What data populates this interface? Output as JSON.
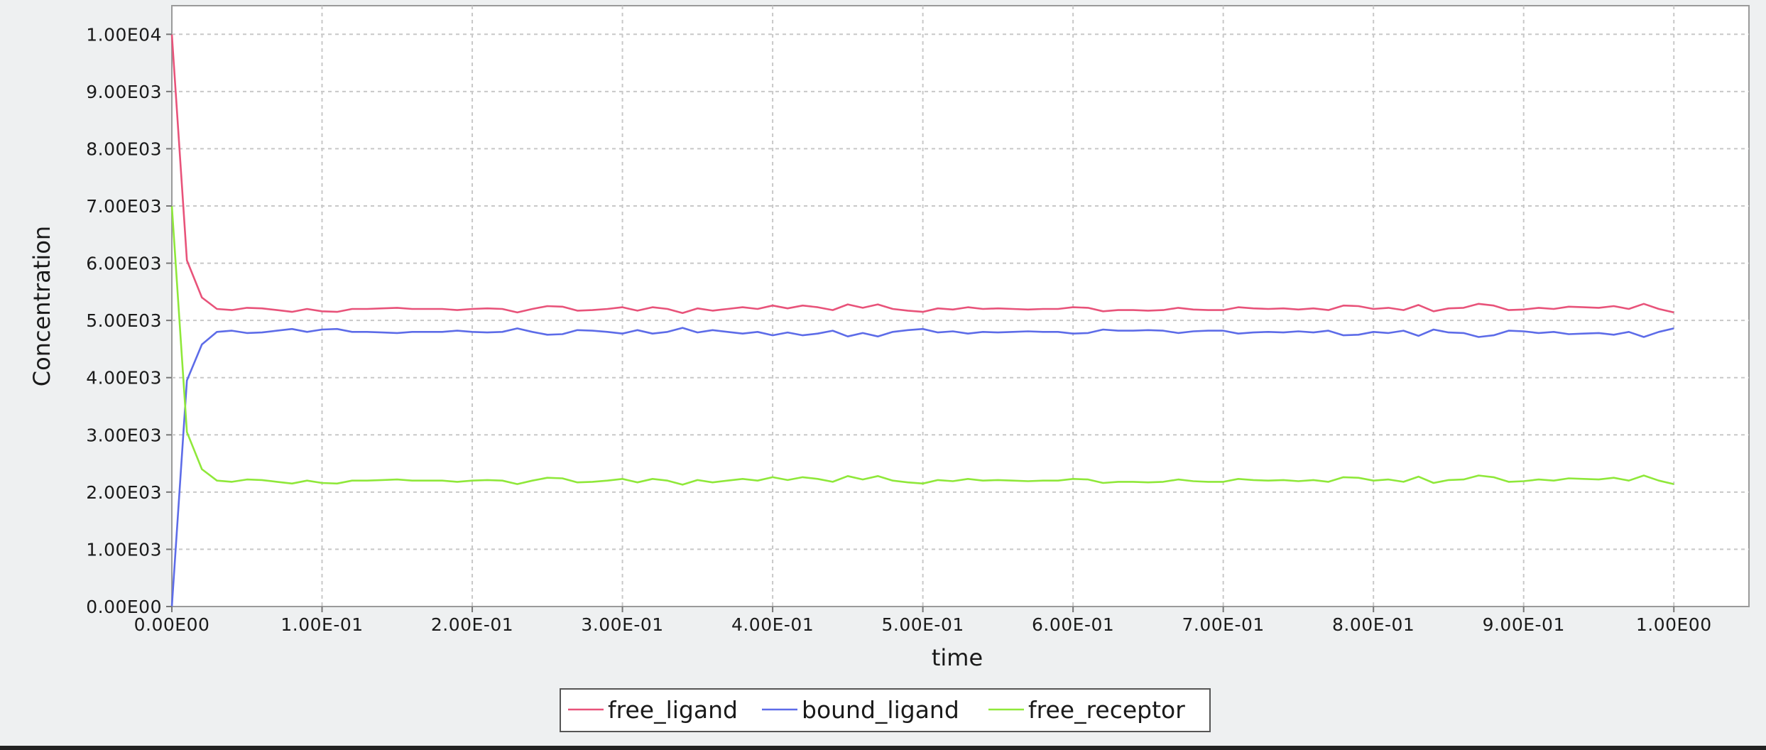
{
  "chart_data": {
    "type": "line",
    "title": "",
    "xlabel": "time",
    "ylabel": "Concentration",
    "xlim": [
      0,
      1.05
    ],
    "ylim": [
      0,
      10500
    ],
    "grid": true,
    "legend_position": "bottom-center",
    "x_ticks": [
      {
        "value": 0.0,
        "label": "0.00E00"
      },
      {
        "value": 0.1,
        "label": "1.00E-01"
      },
      {
        "value": 0.2,
        "label": "2.00E-01"
      },
      {
        "value": 0.3,
        "label": "3.00E-01"
      },
      {
        "value": 0.4,
        "label": "4.00E-01"
      },
      {
        "value": 0.5,
        "label": "5.00E-01"
      },
      {
        "value": 0.6,
        "label": "6.00E-01"
      },
      {
        "value": 0.7,
        "label": "7.00E-01"
      },
      {
        "value": 0.8,
        "label": "8.00E-01"
      },
      {
        "value": 0.9,
        "label": "9.00E-01"
      },
      {
        "value": 1.0,
        "label": "1.00E00"
      }
    ],
    "y_ticks": [
      {
        "value": 0,
        "label": "0.00E00"
      },
      {
        "value": 1000,
        "label": "1.00E03"
      },
      {
        "value": 2000,
        "label": "2.00E03"
      },
      {
        "value": 3000,
        "label": "3.00E03"
      },
      {
        "value": 4000,
        "label": "4.00E03"
      },
      {
        "value": 5000,
        "label": "5.00E03"
      },
      {
        "value": 6000,
        "label": "6.00E03"
      },
      {
        "value": 7000,
        "label": "7.00E03"
      },
      {
        "value": 8000,
        "label": "8.00E03"
      },
      {
        "value": 9000,
        "label": "9.00E03"
      },
      {
        "value": 10000,
        "label": "1.00E04"
      }
    ],
    "x": [
      0,
      0.01,
      0.02,
      0.03,
      0.04,
      0.05,
      0.06,
      0.07,
      0.08,
      0.09,
      0.1,
      0.11,
      0.12,
      0.13,
      0.14,
      0.15,
      0.16,
      0.17,
      0.18,
      0.19,
      0.2,
      0.21,
      0.22,
      0.23,
      0.24,
      0.25,
      0.26,
      0.27,
      0.28,
      0.29,
      0.3,
      0.31,
      0.32,
      0.33,
      0.34,
      0.35,
      0.36,
      0.37,
      0.38,
      0.39,
      0.4,
      0.41,
      0.42,
      0.43,
      0.44,
      0.45,
      0.46,
      0.47,
      0.48,
      0.49,
      0.5,
      0.51,
      0.52,
      0.53,
      0.54,
      0.55,
      0.56,
      0.57,
      0.58,
      0.59,
      0.6,
      0.61,
      0.62,
      0.63,
      0.64,
      0.65,
      0.66,
      0.67,
      0.68,
      0.69,
      0.7,
      0.71,
      0.72,
      0.73,
      0.74,
      0.75,
      0.76,
      0.77,
      0.78,
      0.79,
      0.8,
      0.81,
      0.82,
      0.83,
      0.84,
      0.85,
      0.86,
      0.87,
      0.88,
      0.89,
      0.9,
      0.91,
      0.92,
      0.93,
      0.94,
      0.95,
      0.96,
      0.97,
      0.98,
      0.99,
      1.0
    ],
    "series": [
      {
        "name": "free_ligand",
        "color": "#e8537a",
        "values": [
          10000,
          6050,
          5400,
          5200,
          5180,
          5220,
          5210,
          5180,
          5150,
          5200,
          5160,
          5150,
          5200,
          5200,
          5210,
          5220,
          5200,
          5200,
          5200,
          5180,
          5200,
          5210,
          5200,
          5140,
          5200,
          5250,
          5240,
          5170,
          5180,
          5200,
          5230,
          5170,
          5230,
          5200,
          5130,
          5210,
          5170,
          5200,
          5230,
          5200,
          5260,
          5210,
          5260,
          5230,
          5180,
          5280,
          5220,
          5280,
          5200,
          5170,
          5150,
          5210,
          5190,
          5230,
          5200,
          5210,
          5200,
          5190,
          5200,
          5200,
          5230,
          5220,
          5160,
          5180,
          5180,
          5170,
          5180,
          5220,
          5190,
          5180,
          5180,
          5230,
          5210,
          5200,
          5210,
          5190,
          5210,
          5180,
          5260,
          5250,
          5200,
          5220,
          5180,
          5270,
          5160,
          5210,
          5220,
          5290,
          5260,
          5180,
          5190,
          5220,
          5200,
          5240,
          5230,
          5220,
          5250,
          5200,
          5290,
          5200,
          5140
        ]
      },
      {
        "name": "bound_ligand",
        "color": "#5d6ce8",
        "values": [
          0,
          3950,
          4580,
          4800,
          4820,
          4780,
          4790,
          4820,
          4850,
          4800,
          4840,
          4850,
          4800,
          4800,
          4790,
          4780,
          4800,
          4800,
          4800,
          4820,
          4800,
          4790,
          4800,
          4860,
          4800,
          4750,
          4760,
          4830,
          4820,
          4800,
          4770,
          4830,
          4770,
          4800,
          4870,
          4790,
          4830,
          4800,
          4770,
          4800,
          4740,
          4790,
          4740,
          4770,
          4820,
          4720,
          4780,
          4720,
          4800,
          4830,
          4850,
          4790,
          4810,
          4770,
          4800,
          4790,
          4800,
          4810,
          4800,
          4800,
          4770,
          4780,
          4840,
          4820,
          4820,
          4830,
          4820,
          4780,
          4810,
          4820,
          4820,
          4770,
          4790,
          4800,
          4790,
          4810,
          4790,
          4820,
          4740,
          4750,
          4800,
          4780,
          4820,
          4730,
          4840,
          4790,
          4780,
          4710,
          4740,
          4820,
          4810,
          4780,
          4800,
          4760,
          4770,
          4780,
          4750,
          4800,
          4710,
          4800,
          4860
        ]
      },
      {
        "name": "free_receptor",
        "color": "#8fe83a",
        "values": [
          7000,
          3050,
          2400,
          2200,
          2180,
          2220,
          2210,
          2180,
          2150,
          2200,
          2160,
          2150,
          2200,
          2200,
          2210,
          2220,
          2200,
          2200,
          2200,
          2180,
          2200,
          2210,
          2200,
          2140,
          2200,
          2250,
          2240,
          2170,
          2180,
          2200,
          2230,
          2170,
          2230,
          2200,
          2130,
          2210,
          2170,
          2200,
          2230,
          2200,
          2260,
          2210,
          2260,
          2230,
          2180,
          2280,
          2220,
          2280,
          2200,
          2170,
          2150,
          2210,
          2190,
          2230,
          2200,
          2210,
          2200,
          2190,
          2200,
          2200,
          2230,
          2220,
          2160,
          2180,
          2180,
          2170,
          2180,
          2220,
          2190,
          2180,
          2180,
          2230,
          2210,
          2200,
          2210,
          2190,
          2210,
          2180,
          2260,
          2250,
          2200,
          2220,
          2180,
          2270,
          2160,
          2210,
          2220,
          2290,
          2260,
          2180,
          2190,
          2220,
          2200,
          2240,
          2230,
          2220,
          2250,
          2200,
          2290,
          2200,
          2140
        ]
      }
    ]
  }
}
